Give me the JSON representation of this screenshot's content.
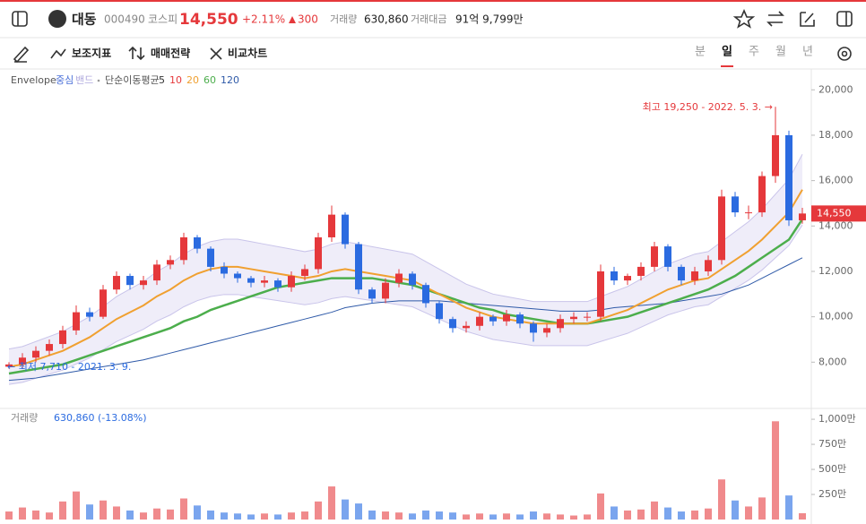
{
  "header": {
    "name": "대동",
    "code": "000490",
    "market": "코스피",
    "price": "14,550",
    "change_pct": "+2.11%",
    "change": "300",
    "volume_label": "거래량",
    "volume": "630,860",
    "amount_label": "거래대금",
    "amount": "91억 9,799만"
  },
  "toolbar": {
    "items": [
      "보조지표",
      "매매전략",
      "비교차트"
    ],
    "periods": [
      "분",
      "일",
      "주",
      "월",
      "년"
    ],
    "active_period": 1
  },
  "chart_data": [
    {
      "type": "candlestick",
      "legend": {
        "envelope": "Envelope",
        "center": "중심",
        "band": "밴드",
        "sma": "단순이동평균",
        "periods": [
          5,
          10,
          20,
          60,
          120
        ],
        "period_colors": [
          "#333333",
          "#e5383b",
          "#f0a030",
          "#4cae4c",
          "#2f5aa8"
        ]
      },
      "open": [
        7800,
        7900,
        8200,
        8500,
        8800,
        9400,
        10200,
        10000,
        11200,
        11800,
        11400,
        11600,
        12300,
        12500,
        13500,
        13000,
        12200,
        11900,
        11700,
        11500,
        11600,
        11300,
        11800,
        12100,
        13500,
        14500,
        13200,
        11200,
        10800,
        11500,
        11900,
        11400,
        10600,
        9900,
        9500,
        9600,
        10000,
        9800,
        10100,
        9700,
        9300,
        9500,
        9900,
        10000,
        10000,
        12000,
        11600,
        11800,
        12200,
        13100,
        12200,
        11600,
        12000,
        12500,
        15300,
        14600,
        14600,
        16200,
        18000,
        14250
      ],
      "high": [
        8000,
        8400,
        8700,
        9000,
        9600,
        10500,
        10400,
        11400,
        12000,
        11900,
        11800,
        12500,
        12700,
        13700,
        13600,
        13100,
        12400,
        12000,
        11800,
        11800,
        11700,
        12000,
        12300,
        13700,
        14900,
        14600,
        13300,
        11300,
        11700,
        12100,
        12000,
        11500,
        10700,
        10000,
        9800,
        10200,
        10100,
        10300,
        10200,
        9800,
        9700,
        10100,
        10200,
        10200,
        12300,
        12200,
        11900,
        12400,
        13300,
        13200,
        12300,
        12200,
        12700,
        15600,
        15500,
        14900,
        16400,
        19250,
        18200,
        14800
      ],
      "low": [
        7710,
        7700,
        8000,
        8300,
        8600,
        9200,
        9800,
        9900,
        11000,
        11200,
        11200,
        11400,
        12100,
        12300,
        12800,
        12000,
        11700,
        11500,
        11300,
        11300,
        11100,
        11100,
        11600,
        11900,
        13300,
        13000,
        11000,
        10600,
        10600,
        11300,
        11200,
        10400,
        9700,
        9300,
        9300,
        9400,
        9600,
        9600,
        9500,
        8900,
        9100,
        9300,
        9700,
        9800,
        9800,
        11400,
        11400,
        11600,
        12000,
        12000,
        11400,
        11400,
        11800,
        12300,
        14400,
        14300,
        14400,
        15900,
        14000,
        14100
      ],
      "close": [
        7900,
        8200,
        8500,
        8800,
        9400,
        10200,
        10000,
        11200,
        11800,
        11400,
        11600,
        12300,
        12500,
        13500,
        13000,
        12200,
        11900,
        11700,
        11500,
        11600,
        11300,
        11800,
        12100,
        13500,
        14500,
        13200,
        11200,
        10800,
        11500,
        11900,
        11400,
        10600,
        9900,
        9500,
        9600,
        10000,
        9800,
        10100,
        9700,
        9300,
        9500,
        9900,
        10000,
        10000,
        12000,
        11600,
        11800,
        12200,
        13100,
        12200,
        11600,
        12000,
        12500,
        15300,
        14600,
        14600,
        16200,
        18000,
        14250,
        14550
      ],
      "color_up": "#e5383b",
      "color_down": "#2b6be0",
      "envelope": {
        "color": "#c9c4ea",
        "fill": "#efedf9",
        "upper": [
          8580,
          8690,
          8910,
          9130,
          9350,
          9680,
          10010,
          10450,
          10890,
          11220,
          11550,
          11990,
          12320,
          12760,
          13090,
          13310,
          13420,
          13420,
          13310,
          13200,
          13090,
          12980,
          12870,
          12980,
          13200,
          13310,
          13200,
          13090,
          12980,
          12870,
          12760,
          12430,
          12100,
          11770,
          11440,
          11220,
          11000,
          10890,
          10780,
          10670,
          10670,
          10670,
          10670,
          10670,
          10890,
          11110,
          11330,
          11660,
          11990,
          12320,
          12540,
          12760,
          12870,
          13310,
          13750,
          14190,
          14740,
          15400,
          16060,
          17160
        ],
        "lower": [
          7020,
          7110,
          7290,
          7470,
          7650,
          7920,
          8190,
          8550,
          8910,
          9180,
          9450,
          9810,
          10080,
          10440,
          10710,
          10890,
          10980,
          10980,
          10890,
          10800,
          10710,
          10620,
          10530,
          10620,
          10800,
          10890,
          10800,
          10710,
          10620,
          10530,
          10440,
          10170,
          9900,
          9630,
          9360,
          9180,
          9000,
          8910,
          8820,
          8730,
          8730,
          8730,
          8730,
          8730,
          8910,
          9090,
          9270,
          9540,
          9810,
          10080,
          10260,
          10440,
          10530,
          10890,
          11250,
          11610,
          12060,
          12600,
          13140,
          14040
        ]
      },
      "overlays": [
        {
          "color": "#2f5aa8",
          "width": 1,
          "values": [
            7200,
            7250,
            7300,
            7400,
            7500,
            7600,
            7700,
            7800,
            7900,
            8000,
            8100,
            8250,
            8400,
            8550,
            8700,
            8850,
            9000,
            9150,
            9300,
            9450,
            9600,
            9750,
            9900,
            10050,
            10200,
            10400,
            10500,
            10600,
            10650,
            10700,
            10700,
            10700,
            10700,
            10650,
            10600,
            10550,
            10500,
            10450,
            10400,
            10350,
            10300,
            10250,
            10250,
            10250,
            10300,
            10400,
            10450,
            10500,
            10550,
            10600,
            10700,
            10800,
            10900,
            11000,
            11200,
            11400,
            11700,
            12000,
            12300,
            12600
          ]
        },
        {
          "color": "#4cae4c",
          "width": 2.5,
          "values": [
            7500,
            7600,
            7700,
            7800,
            7900,
            8100,
            8300,
            8500,
            8700,
            8900,
            9100,
            9300,
            9500,
            9800,
            10000,
            10300,
            10500,
            10700,
            10900,
            11100,
            11300,
            11400,
            11500,
            11600,
            11700,
            11700,
            11700,
            11700,
            11600,
            11500,
            11400,
            11200,
            11000,
            10800,
            10600,
            10400,
            10300,
            10100,
            10000,
            9900,
            9800,
            9700,
            9700,
            9700,
            9800,
            9900,
            10000,
            10200,
            10400,
            10600,
            10800,
            11000,
            11200,
            11500,
            11800,
            12200,
            12600,
            13000,
            13400,
            14300
          ]
        },
        {
          "color": "#f0a030",
          "width": 2,
          "values": [
            7800,
            7900,
            8100,
            8300,
            8500,
            8800,
            9100,
            9500,
            9900,
            10200,
            10500,
            10900,
            11200,
            11600,
            11900,
            12100,
            12200,
            12200,
            12100,
            12000,
            11900,
            11800,
            11700,
            11800,
            12000,
            12100,
            12000,
            11900,
            11800,
            11700,
            11600,
            11300,
            11000,
            10700,
            10400,
            10200,
            10000,
            9900,
            9800,
            9700,
            9700,
            9700,
            9700,
            9700,
            9900,
            10100,
            10300,
            10600,
            10900,
            11200,
            11400,
            11600,
            11700,
            12100,
            12500,
            12900,
            13400,
            14000,
            14600,
            15600
          ]
        }
      ],
      "ylim": [
        6000,
        20800
      ],
      "yticks": [
        {
          "value": 8000,
          "label": "8,000"
        },
        {
          "value": 10000,
          "label": "10,000"
        },
        {
          "value": 12000,
          "label": "12,000"
        },
        {
          "value": 14000,
          "label": "14,000"
        },
        {
          "value": 16000,
          "label": "16,000"
        },
        {
          "value": 18000,
          "label": "18,000"
        },
        {
          "value": 20000,
          "label": "20,000"
        }
      ],
      "annotations": [
        "최고 19,250 - 2022. 5. 3. →",
        "← 최저 7,710 - 2021. 3. 9."
      ],
      "last_price_label": "14,550"
    },
    {
      "type": "bar",
      "legend": {
        "label": "거래량",
        "value": "630,860 (-13.08%)"
      },
      "values": [
        800000,
        1200000,
        900000,
        700000,
        1800000,
        2800000,
        1500000,
        1900000,
        1300000,
        900000,
        700000,
        1100000,
        1000000,
        2100000,
        1400000,
        900000,
        700000,
        600000,
        500000,
        600000,
        500000,
        700000,
        800000,
        1800000,
        3300000,
        2000000,
        1600000,
        900000,
        800000,
        700000,
        600000,
        900000,
        800000,
        700000,
        500000,
        600000,
        500000,
        600000,
        500000,
        800000,
        600000,
        500000,
        400000,
        500000,
        2600000,
        1300000,
        900000,
        1000000,
        1800000,
        1200000,
        800000,
        900000,
        1100000,
        4000000,
        1900000,
        1300000,
        2200000,
        9800000,
        2400000,
        630860
      ],
      "color_up": "#f08a8c",
      "color_down": "#7aa5ee",
      "ylim": [
        0,
        10900000
      ],
      "yticks": [
        {
          "value": 2500000,
          "label": "250만"
        },
        {
          "value": 5000000,
          "label": "500만"
        },
        {
          "value": 7500000,
          "label": "750만"
        },
        {
          "value": 10000000,
          "label": "1,000만"
        }
      ]
    }
  ]
}
